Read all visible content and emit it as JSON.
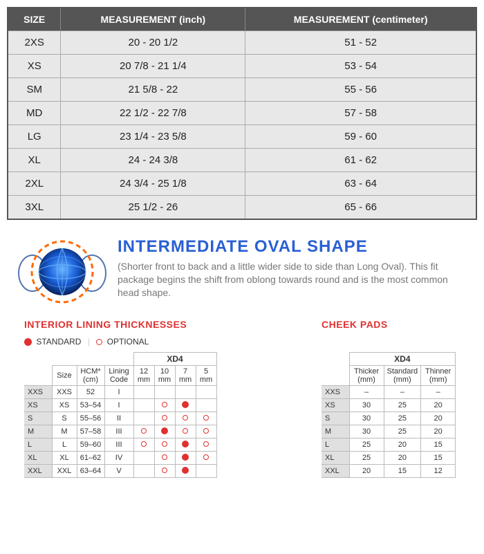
{
  "size_table": {
    "columns": [
      "SIZE",
      "MEASUREMENT (inch)",
      "MEASUREMENT (centimeter)"
    ],
    "rows": [
      [
        "2XS",
        "20 - 20 1/2",
        "51 - 52"
      ],
      [
        "XS",
        "20 7/8 - 21 1/4",
        "53 - 54"
      ],
      [
        "SM",
        "21 5/8 - 22",
        "55 - 56"
      ],
      [
        "MD",
        "22 1/2 - 22 7/8",
        "57 - 58"
      ],
      [
        "LG",
        "23 1/4 - 23 5/8",
        "59 - 60"
      ],
      [
        "XL",
        "24 - 24 3/8",
        "61 - 62"
      ],
      [
        "2XL",
        "24 3/4 - 25 1/8",
        "63 - 64"
      ],
      [
        "3XL",
        "25 1/2 - 26",
        "65 - 66"
      ]
    ],
    "header_bg": "#555555",
    "header_fg": "#ffffff",
    "cell_bg": "#e8e8e8",
    "border_color": "#aaaaaa"
  },
  "shape": {
    "title": "INTERMEDIATE OVAL SHAPE",
    "description": "(Shorter front to back and a little wider side to side than Long Oval). This fit package begins the shift from oblong towards round and is the most common head shape.",
    "title_color": "#2a5fd4",
    "desc_color": "#777777",
    "icon_colors": {
      "ring": "#ff6a00",
      "sphere": "#1a5fd8",
      "glow": "#3a8fff"
    }
  },
  "lining": {
    "heading": "INTERIOR LINING THICKNESSES",
    "legend": {
      "standard": "STANDARD",
      "optional": "OPTIONAL"
    },
    "model": "XD4",
    "columns": [
      "Size",
      "HCM* (cm)",
      "Lining Code",
      "12 mm",
      "10 mm",
      "7 mm",
      "5 mm"
    ],
    "row_labels": [
      "XXS",
      "XS",
      "S",
      "M",
      "L",
      "XL",
      "XXL"
    ],
    "rows": [
      {
        "size": "XXS",
        "hcm": "52",
        "code": "I",
        "m12": "",
        "m10": "",
        "m7": "",
        "m5": ""
      },
      {
        "size": "XS",
        "hcm": "53–54",
        "code": "I",
        "m12": "",
        "m10": "o",
        "m7": "f",
        "m5": ""
      },
      {
        "size": "S",
        "hcm": "55–56",
        "code": "II",
        "m12": "",
        "m10": "o",
        "m7": "o",
        "m5": "o"
      },
      {
        "size": "M",
        "hcm": "57–58",
        "code": "III",
        "m12": "o",
        "m10": "f",
        "m7": "o",
        "m5": "o"
      },
      {
        "size": "L",
        "hcm": "59–60",
        "code": "III",
        "m12": "o",
        "m10": "o",
        "m7": "f",
        "m5": "o"
      },
      {
        "size": "XL",
        "hcm": "61–62",
        "code": "IV",
        "m12": "",
        "m10": "o",
        "m7": "f",
        "m5": "o"
      },
      {
        "size": "XXL",
        "hcm": "63–64",
        "code": "V",
        "m12": "",
        "m10": "o",
        "m7": "f",
        "m5": ""
      }
    ],
    "dot_filled_color": "#e03030",
    "dot_open_color": "#e03030"
  },
  "pads": {
    "heading": "CHEEK PADS",
    "model": "XD4",
    "columns": [
      "Thicker (mm)",
      "Standard (mm)",
      "Thinner (mm)"
    ],
    "row_labels": [
      "XXS",
      "XS",
      "S",
      "M",
      "L",
      "XL",
      "XXL"
    ],
    "rows": [
      {
        "thicker": "–",
        "standard": "–",
        "thinner": "–"
      },
      {
        "thicker": "30",
        "standard": "25",
        "thinner": "20"
      },
      {
        "thicker": "30",
        "standard": "25",
        "thinner": "20"
      },
      {
        "thicker": "30",
        "standard": "25",
        "thinner": "20"
      },
      {
        "thicker": "25",
        "standard": "20",
        "thinner": "15"
      },
      {
        "thicker": "25",
        "standard": "20",
        "thinner": "15"
      },
      {
        "thicker": "20",
        "standard": "15",
        "thinner": "12"
      }
    ]
  },
  "colors": {
    "accent_red": "#e03030",
    "accent_blue": "#2a5fd4",
    "gray_text": "#777777"
  }
}
